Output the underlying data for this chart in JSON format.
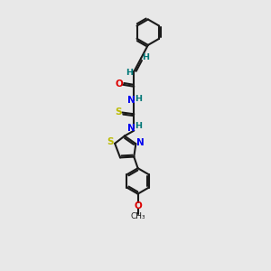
{
  "bg_color": "#e8e8e8",
  "bond_color": "#1a1a1a",
  "atom_colors": {
    "O": "#dd0000",
    "N": "#0000ee",
    "S": "#bbbb00",
    "C": "#1a1a1a",
    "H": "#007777"
  }
}
